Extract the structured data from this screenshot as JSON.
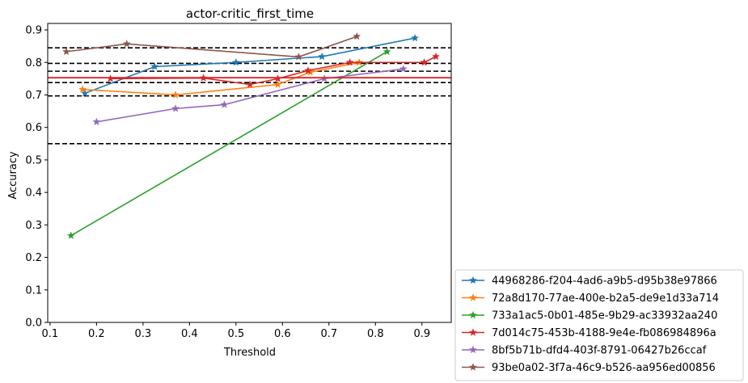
{
  "chart_data": {
    "type": "line",
    "title": "actor-critic_first_time",
    "xlabel": "Threshold",
    "ylabel": "Accuracy",
    "xlim": [
      0.095,
      0.963
    ],
    "ylim": [
      0.0,
      0.92
    ],
    "xticks": [
      0.1,
      0.2,
      0.3,
      0.4,
      0.5,
      0.6,
      0.7,
      0.8,
      0.9
    ],
    "xtick_labels": [
      "0.1",
      "0.2",
      "0.3",
      "0.4",
      "0.5",
      "0.6",
      "0.7",
      "0.8",
      "0.9"
    ],
    "yticks": [
      0.0,
      0.1,
      0.2,
      0.3,
      0.4,
      0.5,
      0.6,
      0.7,
      0.8,
      0.9
    ],
    "ytick_labels": [
      "0.0",
      "0.1",
      "0.2",
      "0.3",
      "0.4",
      "0.5",
      "0.6",
      "0.7",
      "0.8",
      "0.9"
    ],
    "grid": false,
    "legend_position": "outside-bottom-right",
    "marker": "star",
    "hlines_dashed": [
      0.55,
      0.697,
      0.738,
      0.773,
      0.797,
      0.845
    ],
    "hline_solid": {
      "y": 0.753,
      "color": "#d62728"
    },
    "series": [
      {
        "name": "44968286-f204-4ad6-a9b5-d95b38e97866",
        "color": "#1f77b4",
        "x": [
          0.175,
          0.325,
          0.5,
          0.685,
          0.885
        ],
        "y": [
          0.705,
          0.787,
          0.8,
          0.818,
          0.875
        ]
      },
      {
        "name": "72a8d170-77ae-400e-b2a5-de9e1d33a714",
        "color": "#ff7f0e",
        "x": [
          0.17,
          0.37,
          0.59,
          0.66,
          0.765
        ],
        "y": [
          0.717,
          0.7,
          0.732,
          0.77,
          0.8
        ]
      },
      {
        "name": "733a1ac5-0b01-485e-9b29-ac33932aa240",
        "color": "#2ca02c",
        "x": [
          0.145,
          0.825
        ],
        "y": [
          0.267,
          0.833
        ]
      },
      {
        "name": "7d014c75-453b-4188-9e4e-fb086984896a",
        "color": "#d62728",
        "x": [
          0.23,
          0.43,
          0.53,
          0.59,
          0.655,
          0.745,
          0.905,
          0.93
        ],
        "y": [
          0.75,
          0.752,
          0.732,
          0.75,
          0.775,
          0.8,
          0.8,
          0.818
        ]
      },
      {
        "name": "8bf5b71b-dfd4-403f-8791-06427b26ccaf",
        "color": "#9467bd",
        "x": [
          0.2,
          0.37,
          0.475,
          0.69,
          0.86
        ],
        "y": [
          0.617,
          0.658,
          0.67,
          0.75,
          0.78
        ]
      },
      {
        "name": "93be0a02-3f7a-46c9-b526-aa956ed00856",
        "color": "#8c564b",
        "x": [
          0.135,
          0.265,
          0.635,
          0.76
        ],
        "y": [
          0.833,
          0.857,
          0.817,
          0.88
        ]
      }
    ]
  }
}
